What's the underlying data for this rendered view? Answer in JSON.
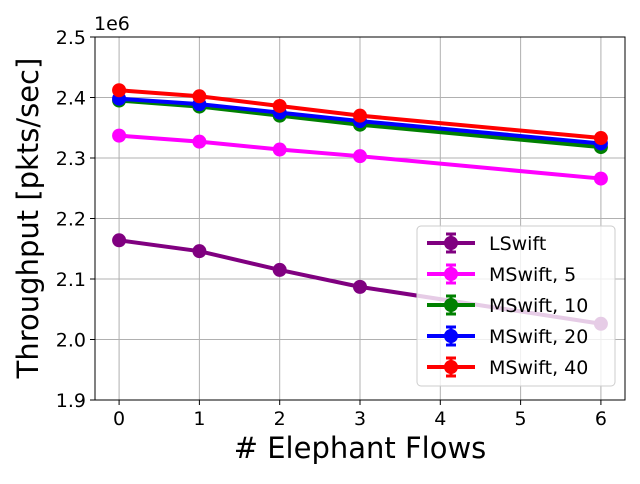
{
  "chart_data": {
    "type": "line",
    "xlabel": "# Elephant Flows",
    "ylabel": "Throughput [pkts/sec]",
    "y_multiplier_label": "1e6",
    "xlim": [
      -0.3,
      6.3
    ],
    "ylim": [
      1.9,
      2.5
    ],
    "x_ticks": [
      0,
      1,
      2,
      3,
      4,
      5,
      6
    ],
    "y_ticks": [
      1.9,
      2.0,
      2.1,
      2.2,
      2.3,
      2.4,
      2.5
    ],
    "y_tick_labels": [
      "1.9",
      "2.0",
      "2.1",
      "2.2",
      "2.3",
      "2.4",
      "2.5"
    ],
    "grid": true,
    "legend_position": "lower-right",
    "x": [
      0,
      1,
      2,
      3,
      6
    ],
    "series": [
      {
        "name": "LSwift",
        "color": "#800080",
        "values": [
          2.164,
          2.146,
          2.115,
          2.087,
          2.026
        ]
      },
      {
        "name": "MSwift, 5",
        "color": "#ff00ff",
        "values": [
          2.337,
          2.327,
          2.314,
          2.303,
          2.266
        ]
      },
      {
        "name": "MSwift, 10",
        "color": "#008000",
        "values": [
          2.395,
          2.385,
          2.37,
          2.355,
          2.318
        ]
      },
      {
        "name": "MSwift, 20",
        "color": "#0000ff",
        "values": [
          2.398,
          2.389,
          2.375,
          2.361,
          2.324
        ]
      },
      {
        "name": "MSwift, 40",
        "color": "#ff0000",
        "values": [
          2.412,
          2.402,
          2.386,
          2.37,
          2.333
        ]
      }
    ]
  }
}
